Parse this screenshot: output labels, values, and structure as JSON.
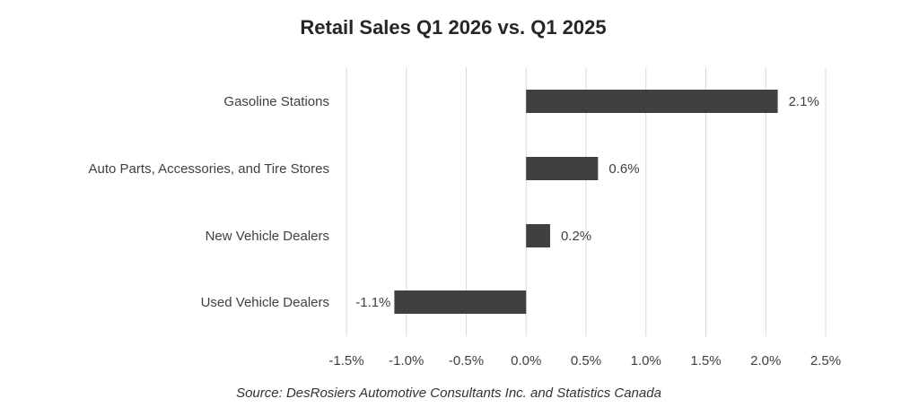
{
  "chart_data": {
    "type": "bar",
    "orientation": "horizontal",
    "title": "Retail Sales Q1 2026 vs. Q1 2025",
    "categories": [
      "Gasoline Stations",
      "Auto Parts, Accessories, and Tire Stores",
      "New Vehicle Dealers",
      "Used Vehicle Dealers"
    ],
    "values": [
      2.1,
      0.6,
      0.2,
      -1.1
    ],
    "data_labels": [
      "2.1%",
      "0.6%",
      "0.2%",
      "-1.1%"
    ],
    "xlim": [
      -1.5,
      2.5
    ],
    "x_ticks": [
      -1.5,
      -1.0,
      -0.5,
      0.0,
      0.5,
      1.0,
      1.5,
      2.0,
      2.5
    ],
    "x_tick_labels": [
      "-1.5%",
      "-1.0%",
      "-0.5%",
      "0.0%",
      "0.5%",
      "1.0%",
      "1.5%",
      "2.0%",
      "2.5%"
    ],
    "grid": "vertical",
    "legend": "none",
    "bar_color": "#404040",
    "gridline_color": "#d9d9d9"
  },
  "source": "Source:  DesRosiers Automotive Consultants Inc. and Statistics Canada"
}
